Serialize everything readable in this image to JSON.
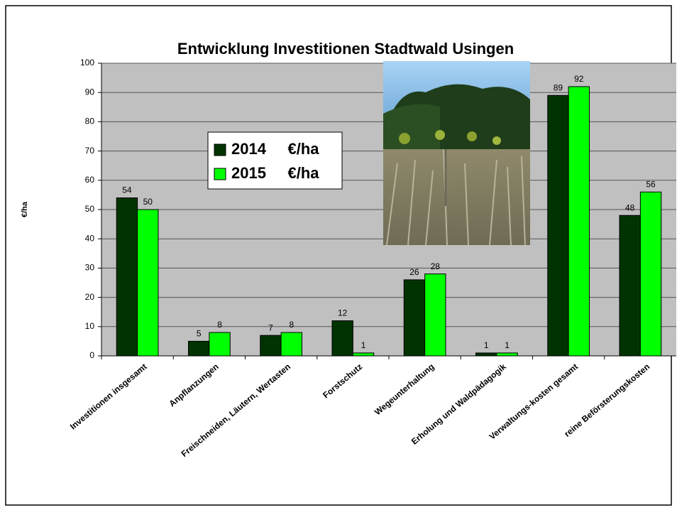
{
  "chart_data": {
    "type": "bar",
    "title": "Entwicklung Investitionen Stadtwald Usingen",
    "y_label": "€/ha",
    "categories": [
      "Investitionen insgesamt",
      "Anpflanzungen",
      "Freischneiden, Läutern, Wertasten",
      "Forstschutz",
      "Wegeunterhaltung",
      "Erholung und Waldpädagogik",
      "Verwaltungs-kosten gesamt",
      "reine Beförsterungskosten"
    ],
    "series": [
      {
        "name": "2014     €/ha",
        "color": "#003300",
        "values": [
          54,
          5,
          7,
          12,
          26,
          1,
          89,
          48
        ]
      },
      {
        "name": "2015     €/ha",
        "color": "#00ff00",
        "values": [
          50,
          8,
          8,
          1,
          28,
          1,
          92,
          56
        ]
      }
    ],
    "ylim": [
      0,
      100
    ],
    "yticks": [
      0,
      10,
      20,
      30,
      40,
      50,
      60,
      70,
      80,
      90,
      100
    ],
    "grid": true
  }
}
